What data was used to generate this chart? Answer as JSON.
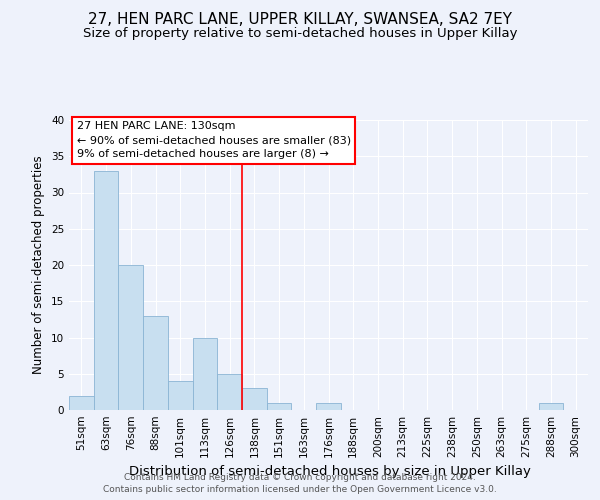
{
  "title": "27, HEN PARC LANE, UPPER KILLAY, SWANSEA, SA2 7EY",
  "subtitle": "Size of property relative to semi-detached houses in Upper Killay",
  "xlabel": "Distribution of semi-detached houses by size in Upper Killay",
  "ylabel": "Number of semi-detached properties",
  "bin_labels": [
    "51sqm",
    "63sqm",
    "76sqm",
    "88sqm",
    "101sqm",
    "113sqm",
    "126sqm",
    "138sqm",
    "151sqm",
    "163sqm",
    "176sqm",
    "188sqm",
    "200sqm",
    "213sqm",
    "225sqm",
    "238sqm",
    "250sqm",
    "263sqm",
    "275sqm",
    "288sqm",
    "300sqm"
  ],
  "bar_heights": [
    2,
    33,
    20,
    13,
    4,
    10,
    5,
    3,
    1,
    0,
    1,
    0,
    0,
    0,
    0,
    0,
    0,
    0,
    0,
    1,
    0
  ],
  "bar_color": "#c8dff0",
  "bar_edge_color": "#8ab4d4",
  "background_color": "#eef2fb",
  "grid_color": "#ffffff",
  "ylim": [
    0,
    40
  ],
  "yticks": [
    0,
    5,
    10,
    15,
    20,
    25,
    30,
    35,
    40
  ],
  "vline_x": 6.5,
  "vline_color": "red",
  "annotation_title": "27 HEN PARC LANE: 130sqm",
  "annotation_line1": "← 90% of semi-detached houses are smaller (83)",
  "annotation_line2": "9% of semi-detached houses are larger (8) →",
  "annotation_box_color": "white",
  "annotation_box_edgecolor": "red",
  "footer_line1": "Contains HM Land Registry data © Crown copyright and database right 2024.",
  "footer_line2": "Contains public sector information licensed under the Open Government Licence v3.0.",
  "title_fontsize": 11,
  "subtitle_fontsize": 9.5,
  "xlabel_fontsize": 9.5,
  "ylabel_fontsize": 8.5,
  "tick_fontsize": 7.5,
  "annotation_fontsize": 8,
  "footer_fontsize": 6.5
}
